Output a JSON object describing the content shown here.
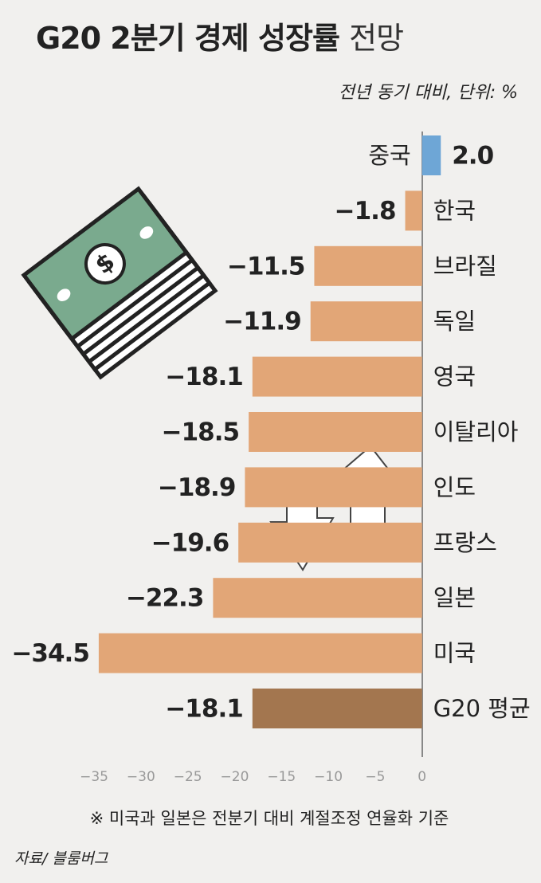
{
  "chart_data": {
    "type": "hbar",
    "title": "G20 2분기 경제 성장률",
    "title_suffix": "전망",
    "subtitle": "전년 동기 대비, 단위: %",
    "categories": [
      "중국",
      "한국",
      "브라질",
      "독일",
      "영국",
      "이탈리아",
      "인도",
      "프랑스",
      "일본",
      "미국",
      "G20 평균"
    ],
    "values": [
      2.0,
      -1.8,
      -11.5,
      -11.9,
      -18.1,
      -18.5,
      -18.9,
      -19.6,
      -22.3,
      -34.5,
      -18.1
    ],
    "value_labels": [
      "2.0",
      "−1.8",
      "−11.5",
      "−11.9",
      "−18.1",
      "−18.5",
      "−18.9",
      "−19.6",
      "−22.3",
      "−34.5",
      "−18.1"
    ],
    "colors": [
      "#6ea6d6",
      "#e2a677",
      "#e2a677",
      "#e2a677",
      "#e2a677",
      "#e2a677",
      "#e2a677",
      "#e2a677",
      "#e2a677",
      "#e2a677",
      "#a3764f"
    ],
    "xlim": [
      -37,
      3
    ],
    "xticks": [
      {
        "value": -35,
        "label": "−35"
      },
      {
        "value": -30,
        "label": "−30"
      },
      {
        "value": -25,
        "label": "−25"
      },
      {
        "value": -20,
        "label": "−20"
      },
      {
        "value": -15,
        "label": "−15"
      },
      {
        "value": -10,
        "label": "−10"
      },
      {
        "value": -5,
        "label": "−5"
      },
      0
    ],
    "note": "※ 미국과 일본은 전분기 대비 계절조정 연율화 기준",
    "source": "자료/ 블룸버그"
  }
}
